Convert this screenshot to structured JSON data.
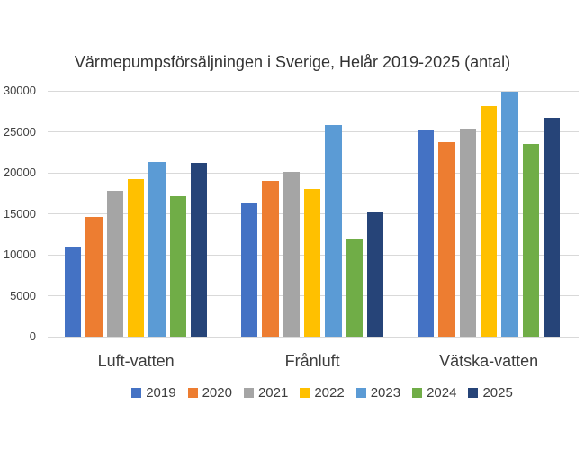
{
  "chart_data": {
    "type": "bar",
    "title": "Värmepumpsförsäljningen i Sverige, Helår 2019-2025 (antal)",
    "categories": [
      "Luft-vatten",
      "Frånluft",
      "Vätska-vatten"
    ],
    "series": [
      {
        "name": "2019",
        "color": "#4472C4",
        "values": [
          11000,
          16300,
          25300
        ]
      },
      {
        "name": "2020",
        "color": "#ED7D31",
        "values": [
          14600,
          19000,
          23700
        ]
      },
      {
        "name": "2021",
        "color": "#A5A5A5",
        "values": [
          17800,
          20100,
          25400
        ]
      },
      {
        "name": "2022",
        "color": "#FFC000",
        "values": [
          19200,
          18000,
          28100
        ]
      },
      {
        "name": "2023",
        "color": "#5B9BD5",
        "values": [
          21300,
          25800,
          29900
        ]
      },
      {
        "name": "2024",
        "color": "#70AD47",
        "values": [
          17100,
          11900,
          23500
        ]
      },
      {
        "name": "2025",
        "color": "#264478",
        "values": [
          21200,
          15200,
          26700
        ]
      }
    ],
    "y_axis": {
      "min": 0,
      "max": 30000,
      "step": 5000,
      "ticks": [
        "0",
        "5000",
        "10000",
        "15000",
        "20000",
        "25000",
        "30000"
      ]
    },
    "legend_position": "bottom",
    "grid": true,
    "gridline_color": "#D9D9D9",
    "background_color": "#FFFFFF",
    "text_color": "#404040"
  }
}
